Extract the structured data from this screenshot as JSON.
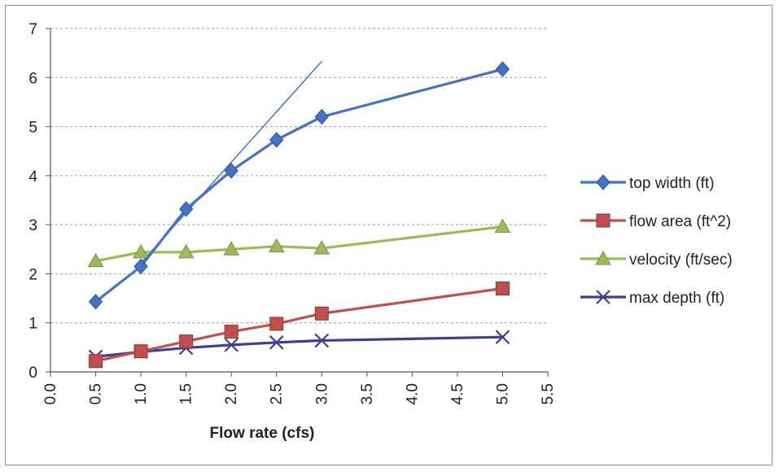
{
  "chart_data": {
    "type": "line",
    "title": "",
    "xlabel": "Flow rate (cfs)",
    "ylabel": "",
    "xlim": [
      0.0,
      5.5
    ],
    "ylim": [
      0,
      7
    ],
    "x_ticks": [
      "0.0",
      "0.5",
      "1.0",
      "1.5",
      "2.0",
      "2.5",
      "3.0",
      "3.5",
      "4.0",
      "4.5",
      "5.0",
      "5.5"
    ],
    "y_ticks": [
      "0",
      "1",
      "2",
      "3",
      "4",
      "5",
      "6",
      "7"
    ],
    "grid": "horizontal-dashed",
    "legend_position": "right",
    "x": [
      0.5,
      1.0,
      1.5,
      2.0,
      2.5,
      3.0,
      5.0
    ],
    "series": [
      {
        "name": "top width (ft)",
        "marker": "diamond",
        "color": "#4472c4",
        "values": [
          1.43,
          2.15,
          3.32,
          4.1,
          4.73,
          5.2,
          6.17
        ]
      },
      {
        "name": "flow area (ft^2)",
        "marker": "square",
        "color": "#c0504d",
        "values": [
          0.22,
          0.42,
          0.62,
          0.82,
          0.98,
          1.19,
          1.7
        ]
      },
      {
        "name": "velocity (ft/sec)",
        "marker": "triangle",
        "color": "#9bbb59",
        "values": [
          2.26,
          2.44,
          2.44,
          2.5,
          2.56,
          2.52,
          2.96
        ]
      },
      {
        "name": "max depth (ft)",
        "marker": "x",
        "color": "#3c3f94",
        "values": [
          0.31,
          0.41,
          0.49,
          0.55,
          0.6,
          0.64,
          0.71
        ]
      }
    ],
    "annotation_line": {
      "color": "#4472c4",
      "x": [
        1.0,
        3.0
      ],
      "y": [
        2.22,
        6.33
      ]
    }
  }
}
